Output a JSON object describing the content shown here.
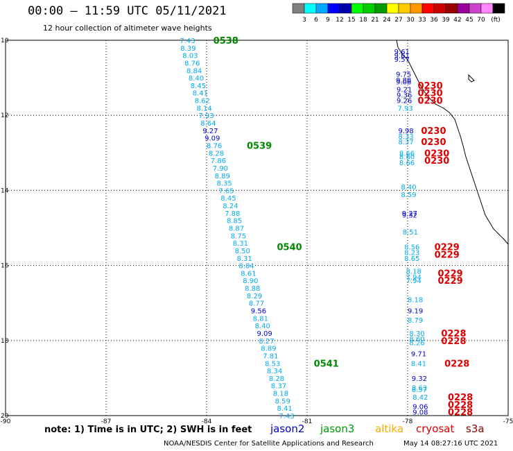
{
  "header": {
    "title": "00:00 – 11:59 UTC 05/11/2021",
    "subtitle": "12 hour collection of altimeter wave heights"
  },
  "footer": {
    "note": "note:  1) Time is in UTC;  2) SWH is in feet",
    "credit": "NOAA/NESDIS Center for Satellite Applications and Research",
    "timestamp": "May 14 08:27:16 UTC 2021"
  },
  "missions": [
    {
      "label": "jason2",
      "color": "#0000cc"
    },
    {
      "label": "jason3",
      "color": "#009900"
    },
    {
      "label": "altika",
      "color": "#ffaa00"
    },
    {
      "label": "cryosat",
      "color": "#dd0000"
    },
    {
      "label": "s3a",
      "color": "#880000"
    }
  ],
  "chart_data": {
    "type": "scatter",
    "title": "12 hour collection of altimeter wave heights",
    "xlim": [
      -90,
      -75
    ],
    "ylim": [
      10,
      20
    ],
    "x_ticks": [
      "-90",
      "-87",
      "-84",
      "-81",
      "-78",
      "-75"
    ],
    "y_ticks": [
      "10",
      "12",
      "14",
      "16",
      "18",
      "20"
    ],
    "grid": true,
    "legend": {
      "units": "(ft)",
      "colors": [
        "#808080",
        "#00ffff",
        "#00aaff",
        "#0000ff",
        "#0000aa",
        "#00ff00",
        "#00cc00",
        "#009900",
        "#ffff00",
        "#ffcc00",
        "#ff9900",
        "#ff0000",
        "#cc0000",
        "#990000",
        "#990099",
        "#cc44cc",
        "#ff88ff",
        "#000000"
      ],
      "labels": [
        "3",
        "6",
        "9",
        "12",
        "15",
        "18",
        "21",
        "24",
        "27",
        "30",
        "33",
        "36",
        "39",
        "42",
        "45",
        "70"
      ]
    },
    "track_time_labels": [
      {
        "text": "0538",
        "lon": -83.8,
        "lat": 10.0,
        "color": "#008800"
      },
      {
        "text": "0539",
        "lon": -82.8,
        "lat": 12.8,
        "color": "#008800"
      },
      {
        "text": "0540",
        "lon": -81.9,
        "lat": 15.5,
        "color": "#008800"
      },
      {
        "text": "0541",
        "lon": -80.8,
        "lat": 18.6,
        "color": "#008800"
      },
      {
        "text": "0230",
        "lon": -77.7,
        "lat": 11.2,
        "color": "#dd0000"
      },
      {
        "text": "0230",
        "lon": -77.7,
        "lat": 11.4,
        "color": "#dd0000"
      },
      {
        "text": "0230",
        "lon": -77.7,
        "lat": 11.6,
        "color": "#dd0000"
      },
      {
        "text": "0230",
        "lon": -77.6,
        "lat": 12.4,
        "color": "#dd0000"
      },
      {
        "text": "0230",
        "lon": -77.6,
        "lat": 12.7,
        "color": "#dd0000"
      },
      {
        "text": "0230",
        "lon": -77.5,
        "lat": 13.0,
        "color": "#dd0000"
      },
      {
        "text": "0230",
        "lon": -77.5,
        "lat": 13.2,
        "color": "#dd0000"
      },
      {
        "text": "0229",
        "lon": -77.2,
        "lat": 15.5,
        "color": "#dd0000"
      },
      {
        "text": "0229",
        "lon": -77.2,
        "lat": 15.7,
        "color": "#dd0000"
      },
      {
        "text": "0229",
        "lon": -77.1,
        "lat": 16.2,
        "color": "#dd0000"
      },
      {
        "text": "0229",
        "lon": -77.1,
        "lat": 16.4,
        "color": "#dd0000"
      },
      {
        "text": "0228",
        "lon": -77.0,
        "lat": 17.8,
        "color": "#dd0000"
      },
      {
        "text": "0228",
        "lon": -77.0,
        "lat": 18.0,
        "color": "#dd0000"
      },
      {
        "text": "0228",
        "lon": -76.9,
        "lat": 18.6,
        "color": "#dd0000"
      },
      {
        "text": "0228",
        "lon": -76.8,
        "lat": 19.5,
        "color": "#dd0000"
      },
      {
        "text": "0228",
        "lon": -76.8,
        "lat": 19.7,
        "color": "#dd0000"
      },
      {
        "text": "0228",
        "lon": -76.8,
        "lat": 19.9,
        "color": "#dd0000"
      }
    ],
    "series": [
      {
        "name": "jason3",
        "color_by": "swh",
        "points": [
          {
            "lon": -84.8,
            "lat": 10.0,
            "swh": 7.43
          },
          {
            "lon": -84.78,
            "lat": 10.2,
            "swh": 8.39
          },
          {
            "lon": -84.72,
            "lat": 10.4,
            "swh": 8.03
          },
          {
            "lon": -84.66,
            "lat": 10.6,
            "swh": 8.76
          },
          {
            "lon": -84.6,
            "lat": 10.8,
            "swh": 8.84
          },
          {
            "lon": -84.54,
            "lat": 11.0,
            "swh": 8.4
          },
          {
            "lon": -84.48,
            "lat": 11.2,
            "swh": 8.45
          },
          {
            "lon": -84.42,
            "lat": 11.4,
            "swh": 8.41
          },
          {
            "lon": -84.36,
            "lat": 11.6,
            "swh": 8.62
          },
          {
            "lon": -84.3,
            "lat": 11.8,
            "swh": 8.14
          },
          {
            "lon": -84.24,
            "lat": 12.0,
            "swh": 7.93
          },
          {
            "lon": -84.18,
            "lat": 12.2,
            "swh": 8.64
          },
          {
            "lon": -84.12,
            "lat": 12.4,
            "swh": 9.27
          },
          {
            "lon": -84.06,
            "lat": 12.6,
            "swh": 9.09
          },
          {
            "lon": -84.0,
            "lat": 12.8,
            "swh": 8.76
          },
          {
            "lon": -83.94,
            "lat": 13.0,
            "swh": 8.28
          },
          {
            "lon": -83.88,
            "lat": 13.2,
            "swh": 7.86
          },
          {
            "lon": -83.82,
            "lat": 13.4,
            "swh": 7.9
          },
          {
            "lon": -83.76,
            "lat": 13.6,
            "swh": 8.89
          },
          {
            "lon": -83.7,
            "lat": 13.8,
            "swh": 8.35
          },
          {
            "lon": -83.64,
            "lat": 14.0,
            "swh": 7.65
          },
          {
            "lon": -83.58,
            "lat": 14.2,
            "swh": 8.45
          },
          {
            "lon": -83.52,
            "lat": 14.4,
            "swh": 8.24
          },
          {
            "lon": -83.46,
            "lat": 14.6,
            "swh": 7.88
          },
          {
            "lon": -83.4,
            "lat": 14.8,
            "swh": 8.85
          },
          {
            "lon": -83.34,
            "lat": 15.0,
            "swh": 8.87
          },
          {
            "lon": -83.28,
            "lat": 15.2,
            "swh": 8.75
          },
          {
            "lon": -83.22,
            "lat": 15.4,
            "swh": 8.31
          },
          {
            "lon": -83.16,
            "lat": 15.6,
            "swh": 8.5
          },
          {
            "lon": -83.1,
            "lat": 15.8,
            "swh": 8.31
          },
          {
            "lon": -83.04,
            "lat": 16.0,
            "swh": 8.84
          },
          {
            "lon": -82.98,
            "lat": 16.2,
            "swh": 8.61
          },
          {
            "lon": -82.92,
            "lat": 16.4,
            "swh": 8.9
          },
          {
            "lon": -82.86,
            "lat": 16.6,
            "swh": 8.88
          },
          {
            "lon": -82.8,
            "lat": 16.8,
            "swh": 8.29
          },
          {
            "lon": -82.74,
            "lat": 17.0,
            "swh": 8.77
          },
          {
            "lon": -82.68,
            "lat": 17.2,
            "swh": 9.56
          },
          {
            "lon": -82.62,
            "lat": 17.4,
            "swh": 8.81
          },
          {
            "lon": -82.56,
            "lat": 17.6,
            "swh": 8.4
          },
          {
            "lon": -82.5,
            "lat": 17.8,
            "swh": 9.09
          },
          {
            "lon": -82.44,
            "lat": 18.0,
            "swh": 8.27
          },
          {
            "lon": -82.38,
            "lat": 18.2,
            "swh": 8.89
          },
          {
            "lon": -82.32,
            "lat": 18.4,
            "swh": 7.81
          },
          {
            "lon": -82.26,
            "lat": 18.6,
            "swh": 8.53
          },
          {
            "lon": -82.2,
            "lat": 18.8,
            "swh": 8.34
          },
          {
            "lon": -82.14,
            "lat": 19.0,
            "swh": 8.28
          },
          {
            "lon": -82.08,
            "lat": 19.2,
            "swh": 8.37
          },
          {
            "lon": -82.02,
            "lat": 19.4,
            "swh": 8.18
          },
          {
            "lon": -81.96,
            "lat": 19.6,
            "swh": 8.59
          },
          {
            "lon": -81.9,
            "lat": 19.8,
            "swh": 8.41
          },
          {
            "lon": -81.84,
            "lat": 20.0,
            "swh": 7.43
          }
        ]
      },
      {
        "name": "cryosat",
        "color_by": "swh",
        "points": [
          {
            "lon": -78.4,
            "lat": 10.3,
            "swh": 9.61
          },
          {
            "lon": -78.4,
            "lat": 10.4,
            "swh": 9.61
          },
          {
            "lon": -78.4,
            "lat": 10.5,
            "swh": 9.57
          },
          {
            "lon": -78.35,
            "lat": 10.9,
            "swh": 9.75
          },
          {
            "lon": -78.35,
            "lat": 11.05,
            "swh": 9.88
          },
          {
            "lon": -78.35,
            "lat": 11.1,
            "swh": 9.08
          },
          {
            "lon": -78.33,
            "lat": 11.3,
            "swh": 9.21
          },
          {
            "lon": -78.33,
            "lat": 11.45,
            "swh": 9.36
          },
          {
            "lon": -78.33,
            "lat": 11.6,
            "swh": 9.26
          },
          {
            "lon": -78.3,
            "lat": 11.8,
            "swh": 7.93
          },
          {
            "lon": -78.28,
            "lat": 12.4,
            "swh": 9.98
          },
          {
            "lon": -78.28,
            "lat": 12.55,
            "swh": 8.33
          },
          {
            "lon": -78.28,
            "lat": 12.7,
            "swh": 8.37
          },
          {
            "lon": -78.25,
            "lat": 13.0,
            "swh": 8.66
          },
          {
            "lon": -78.25,
            "lat": 13.1,
            "swh": 8.6
          },
          {
            "lon": -78.25,
            "lat": 13.25,
            "swh": 8.66
          },
          {
            "lon": -78.2,
            "lat": 13.9,
            "swh": 8.4
          },
          {
            "lon": -78.2,
            "lat": 14.1,
            "swh": 8.59
          },
          {
            "lon": -78.17,
            "lat": 14.6,
            "swh": 9.27
          },
          {
            "lon": -78.17,
            "lat": 14.65,
            "swh": 9.32
          },
          {
            "lon": -78.15,
            "lat": 15.1,
            "swh": 8.51
          },
          {
            "lon": -78.1,
            "lat": 15.5,
            "swh": 8.56
          },
          {
            "lon": -78.1,
            "lat": 15.65,
            "swh": 8.23
          },
          {
            "lon": -78.1,
            "lat": 15.8,
            "swh": 8.65
          },
          {
            "lon": -78.05,
            "lat": 16.15,
            "swh": 8.18
          },
          {
            "lon": -78.05,
            "lat": 16.3,
            "swh": 7.94
          },
          {
            "lon": -78.05,
            "lat": 16.4,
            "swh": 7.94
          },
          {
            "lon": -78.0,
            "lat": 16.9,
            "swh": 8.18
          },
          {
            "lon": -78.0,
            "lat": 17.2,
            "swh": 9.19
          },
          {
            "lon": -78.0,
            "lat": 17.45,
            "swh": 8.79
          },
          {
            "lon": -77.95,
            "lat": 17.8,
            "swh": 8.3
          },
          {
            "lon": -77.95,
            "lat": 17.95,
            "swh": 8.6
          },
          {
            "lon": -77.95,
            "lat": 18.05,
            "swh": 8.26
          },
          {
            "lon": -77.9,
            "lat": 18.35,
            "swh": 9.71
          },
          {
            "lon": -77.9,
            "lat": 18.6,
            "swh": 8.41
          },
          {
            "lon": -77.88,
            "lat": 19.0,
            "swh": 9.32
          },
          {
            "lon": -77.88,
            "lat": 19.25,
            "swh": 8.63
          },
          {
            "lon": -77.88,
            "lat": 19.3,
            "swh": 8.57
          },
          {
            "lon": -77.85,
            "lat": 19.5,
            "swh": 8.42
          },
          {
            "lon": -77.85,
            "lat": 19.75,
            "swh": 9.06
          },
          {
            "lon": -77.85,
            "lat": 19.9,
            "swh": 9.08
          }
        ]
      }
    ]
  }
}
